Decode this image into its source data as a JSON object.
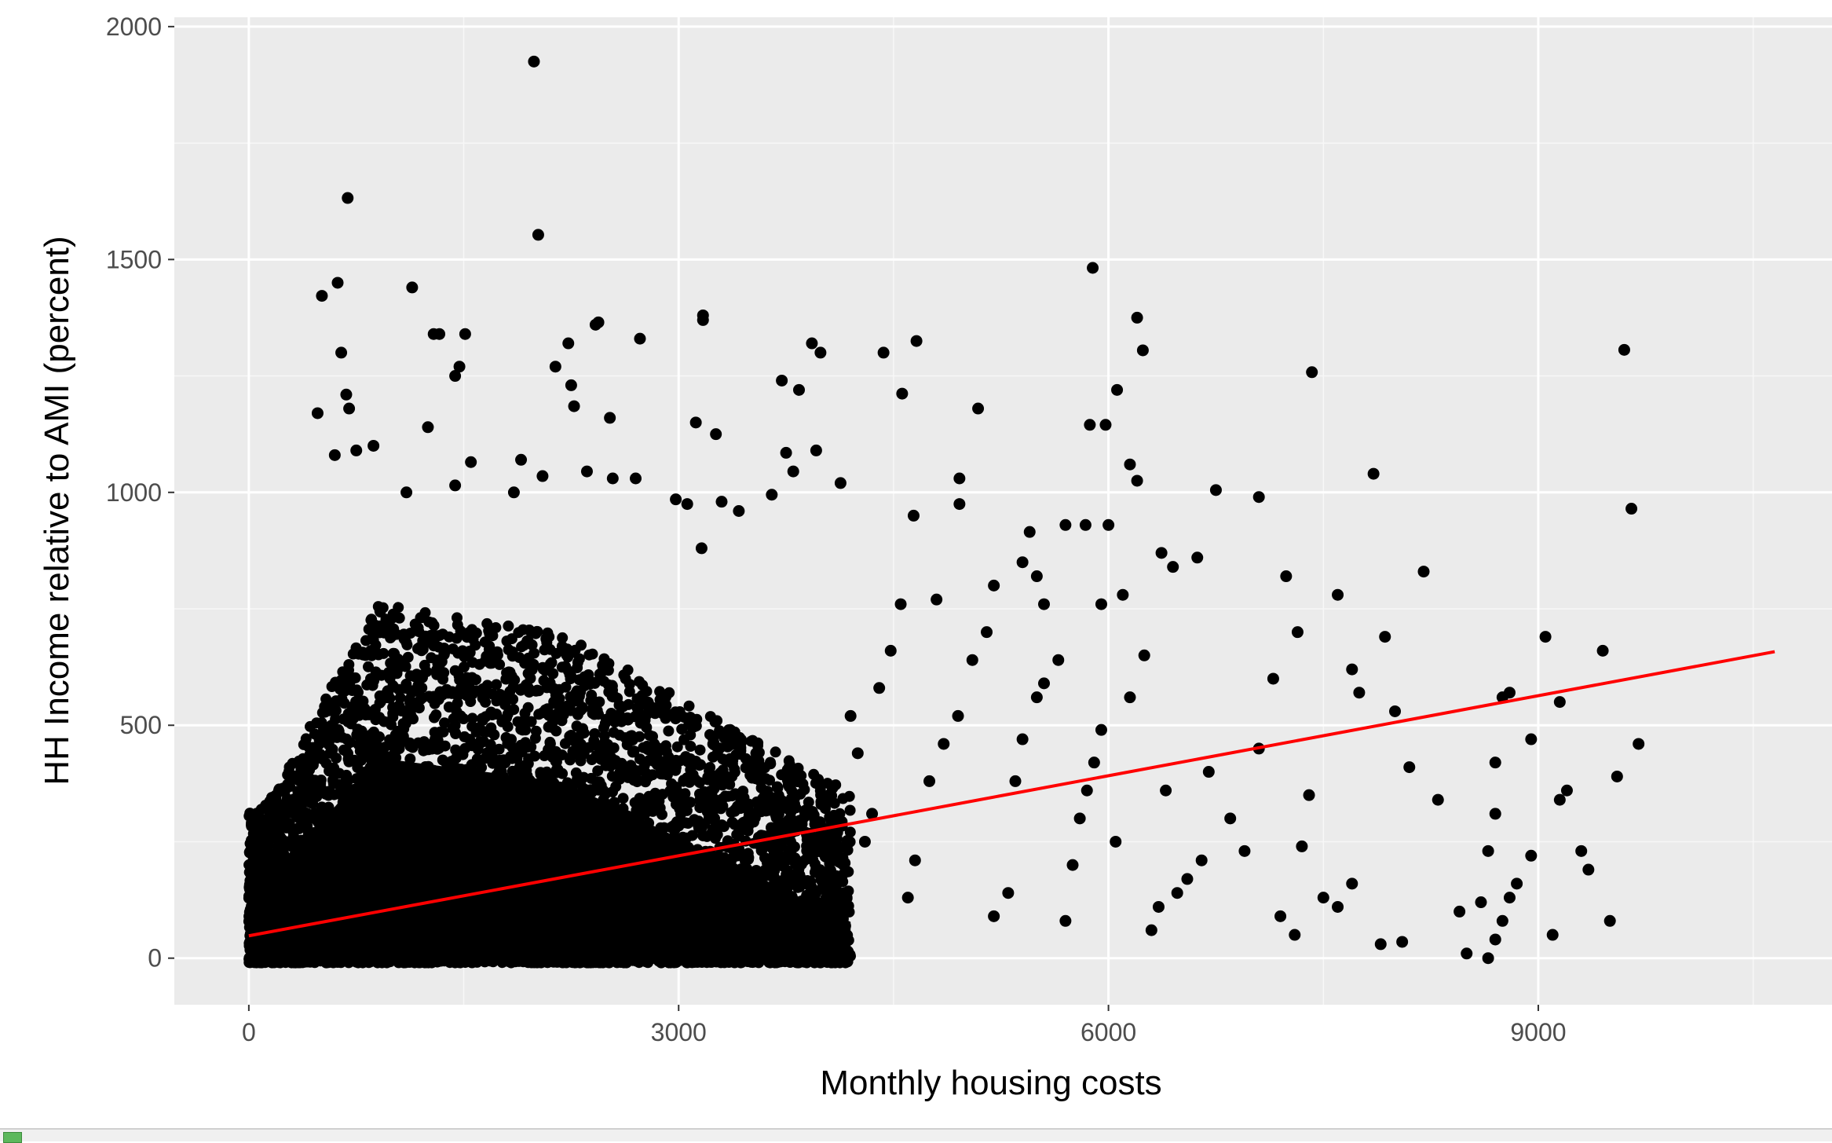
{
  "chart_data": {
    "type": "scatter",
    "title": "",
    "xlabel": "Monthly housing costs",
    "ylabel": "HH Income relative to AMI (percent)",
    "xlim": [
      -520,
      11050
    ],
    "ylim": [
      -100,
      2020
    ],
    "x_ticks": [
      0,
      3000,
      6000,
      9000
    ],
    "y_ticks": [
      0,
      500,
      1000,
      1500,
      2000
    ],
    "x_tick_labels": [
      "0",
      "3000",
      "6000",
      "9000"
    ],
    "y_tick_labels": [
      "0",
      "500",
      "1000",
      "1500",
      "2000"
    ],
    "grid": true,
    "legend": "none",
    "point_color": "#000000",
    "panel_background": "#ebebeb",
    "trend_line": {
      "color": "#ff0000",
      "points": [
        [
          0,
          48
        ],
        [
          10650,
          658
        ]
      ]
    },
    "points": [
      [
        1990,
        1925
      ],
      [
        2020,
        1553
      ],
      [
        690,
        1632
      ],
      [
        1140,
        1440
      ],
      [
        620,
        1450
      ],
      [
        510,
        1422
      ],
      [
        645,
        1300
      ],
      [
        1290,
        1340
      ],
      [
        1330,
        1340
      ],
      [
        1510,
        1340
      ],
      [
        1470,
        1270
      ],
      [
        1440,
        1250
      ],
      [
        2440,
        1365
      ],
      [
        2420,
        1360
      ],
      [
        3170,
        1380
      ],
      [
        3170,
        1370
      ],
      [
        2730,
        1330
      ],
      [
        2230,
        1320
      ],
      [
        2140,
        1270
      ],
      [
        2250,
        1230
      ],
      [
        2270,
        1185
      ],
      [
        2520,
        1160
      ],
      [
        3120,
        1150
      ],
      [
        3260,
        1125
      ],
      [
        3930,
        1320
      ],
      [
        3990,
        1300
      ],
      [
        3720,
        1240
      ],
      [
        3840,
        1220
      ],
      [
        4430,
        1300
      ],
      [
        4660,
        1325
      ],
      [
        4560,
        1212
      ],
      [
        5090,
        1180
      ],
      [
        5890,
        1482
      ],
      [
        6200,
        1375
      ],
      [
        6240,
        1305
      ],
      [
        6060,
        1220
      ],
      [
        5870,
        1145
      ],
      [
        5980,
        1145
      ],
      [
        7420,
        1258
      ],
      [
        9600,
        1306
      ],
      [
        9650,
        965
      ],
      [
        7850,
        1040
      ],
      [
        8200,
        830
      ],
      [
        7050,
        990
      ],
      [
        6750,
        1005
      ],
      [
        4960,
        1030
      ],
      [
        4960,
        975
      ],
      [
        4640,
        950
      ],
      [
        3960,
        1090
      ],
      [
        3750,
        1085
      ],
      [
        3800,
        1045
      ],
      [
        4130,
        1020
      ],
      [
        3650,
        995
      ],
      [
        480,
        1170
      ],
      [
        700,
        1180
      ],
      [
        680,
        1210
      ],
      [
        870,
        1100
      ],
      [
        750,
        1090
      ],
      [
        600,
        1080
      ],
      [
        1440,
        1015
      ],
      [
        1250,
        1140
      ],
      [
        1100,
        1000
      ],
      [
        1550,
        1065
      ],
      [
        1900,
        1070
      ],
      [
        1850,
        1000
      ],
      [
        2050,
        1035
      ],
      [
        2360,
        1045
      ],
      [
        2540,
        1030
      ],
      [
        2700,
        1030
      ],
      [
        2980,
        985
      ],
      [
        3060,
        975
      ],
      [
        3160,
        880
      ],
      [
        3300,
        980
      ],
      [
        3420,
        960
      ],
      [
        5450,
        915
      ],
      [
        5700,
        930
      ],
      [
        5840,
        930
      ],
      [
        6000,
        930
      ],
      [
        6150,
        1060
      ],
      [
        6200,
        1025
      ],
      [
        6370,
        870
      ],
      [
        6450,
        840
      ],
      [
        6620,
        860
      ],
      [
        7240,
        820
      ],
      [
        7320,
        700
      ],
      [
        7600,
        780
      ],
      [
        7700,
        620
      ],
      [
        7750,
        570
      ],
      [
        7930,
        690
      ],
      [
        8000,
        530
      ],
      [
        8100,
        410
      ],
      [
        8300,
        340
      ],
      [
        8700,
        420
      ],
      [
        8750,
        560
      ],
      [
        8800,
        570
      ],
      [
        8950,
        470
      ],
      [
        9050,
        690
      ],
      [
        9150,
        550
      ],
      [
        9200,
        360
      ],
      [
        9300,
        230
      ],
      [
        9350,
        190
      ],
      [
        9500,
        80
      ],
      [
        9450,
        660
      ],
      [
        9550,
        390
      ],
      [
        9700,
        460
      ],
      [
        9150,
        340
      ],
      [
        8950,
        220
      ],
      [
        8850,
        160
      ],
      [
        8800,
        130
      ],
      [
        8750,
        80
      ],
      [
        8700,
        40
      ],
      [
        8650,
        0
      ],
      [
        8500,
        10
      ],
      [
        8450,
        100
      ],
      [
        8650,
        230
      ],
      [
        8700,
        310
      ],
      [
        8600,
        120
      ],
      [
        9100,
        50
      ],
      [
        7900,
        30
      ],
      [
        8050,
        35
      ],
      [
        7700,
        160
      ],
      [
        7600,
        110
      ],
      [
        7500,
        130
      ],
      [
        7400,
        350
      ],
      [
        7350,
        240
      ],
      [
        7300,
        50
      ],
      [
        7200,
        90
      ],
      [
        7150,
        600
      ],
      [
        7050,
        450
      ],
      [
        6950,
        230
      ],
      [
        6850,
        300
      ],
      [
        6700,
        400
      ],
      [
        6650,
        210
      ],
      [
        6550,
        170
      ],
      [
        6480,
        140
      ],
      [
        6400,
        360
      ],
      [
        6350,
        110
      ],
      [
        6300,
        60
      ],
      [
        6250,
        650
      ],
      [
        6150,
        560
      ],
      [
        6050,
        250
      ],
      [
        5950,
        490
      ],
      [
        5900,
        420
      ],
      [
        5850,
        360
      ],
      [
        5800,
        300
      ],
      [
        5750,
        200
      ],
      [
        5700,
        80
      ],
      [
        5650,
        640
      ],
      [
        5550,
        590
      ],
      [
        5500,
        560
      ],
      [
        5400,
        470
      ],
      [
        5350,
        380
      ],
      [
        5300,
        140
      ],
      [
        5200,
        90
      ],
      [
        5150,
        700
      ],
      [
        5050,
        640
      ],
      [
        4950,
        520
      ],
      [
        4850,
        460
      ],
      [
        4750,
        380
      ],
      [
        4650,
        210
      ],
      [
        4600,
        130
      ],
      [
        4550,
        760
      ],
      [
        4480,
        660
      ],
      [
        4400,
        580
      ],
      [
        4350,
        310
      ],
      [
        4300,
        250
      ],
      [
        4250,
        440
      ],
      [
        4200,
        520
      ],
      [
        5400,
        850
      ],
      [
        5500,
        820
      ],
      [
        5950,
        760
      ],
      [
        6100,
        780
      ],
      [
        5550,
        760
      ],
      [
        5200,
        800
      ],
      [
        4800,
        770
      ]
    ]
  }
}
